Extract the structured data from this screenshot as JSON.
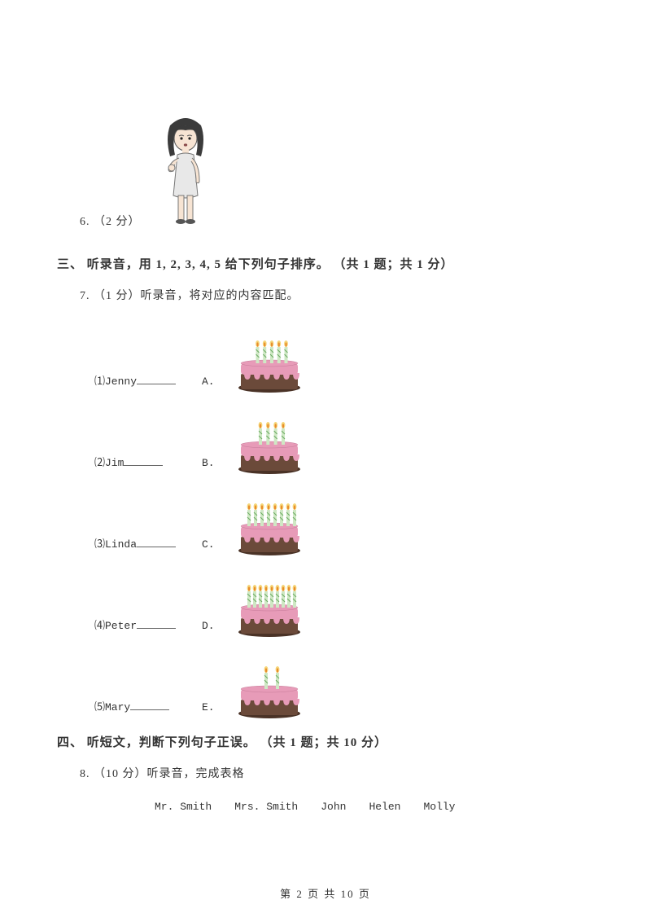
{
  "q6": {
    "label": "6. （2 分）"
  },
  "section3": {
    "heading": "三、 听录音，用 1, 2, 3, 4, 5 给下列句子排序。 （共 1 题；共 1 分）"
  },
  "q7": {
    "label": "7. （1 分）听录音，将对应的内容匹配。",
    "items": [
      {
        "idx": "⑴",
        "name": "Jenny",
        "letter": "A.",
        "candles": 5
      },
      {
        "idx": "⑵",
        "name": "Jim",
        "letter": "B.",
        "candles": 4
      },
      {
        "idx": "⑶",
        "name": "Linda",
        "letter": "C.",
        "candles": 8
      },
      {
        "idx": "⑷",
        "name": "Peter",
        "letter": "D.",
        "candles": 9
      },
      {
        "idx": "⑸",
        "name": "Mary",
        "letter": "E.",
        "candles": 2
      }
    ]
  },
  "section4": {
    "heading": "四、 听短文，判断下列句子正误。 （共 1 题；共 10 分）"
  },
  "q8": {
    "label": "8. （10 分）听录音，完成表格",
    "columns": [
      "Mr. Smith",
      "Mrs. Smith",
      "John",
      "Helen",
      "Molly"
    ]
  },
  "footer": "第 2 页 共 10 页",
  "colors": {
    "cake_frosting": "#e79bb8",
    "cake_base": "#6b4a3a",
    "cake_dark": "#4a3226",
    "candle_body": "#cfe8c4",
    "candle_stripe": "#6aa963",
    "flame_outer": "#f5d578",
    "flame_inner": "#e88b2c"
  }
}
